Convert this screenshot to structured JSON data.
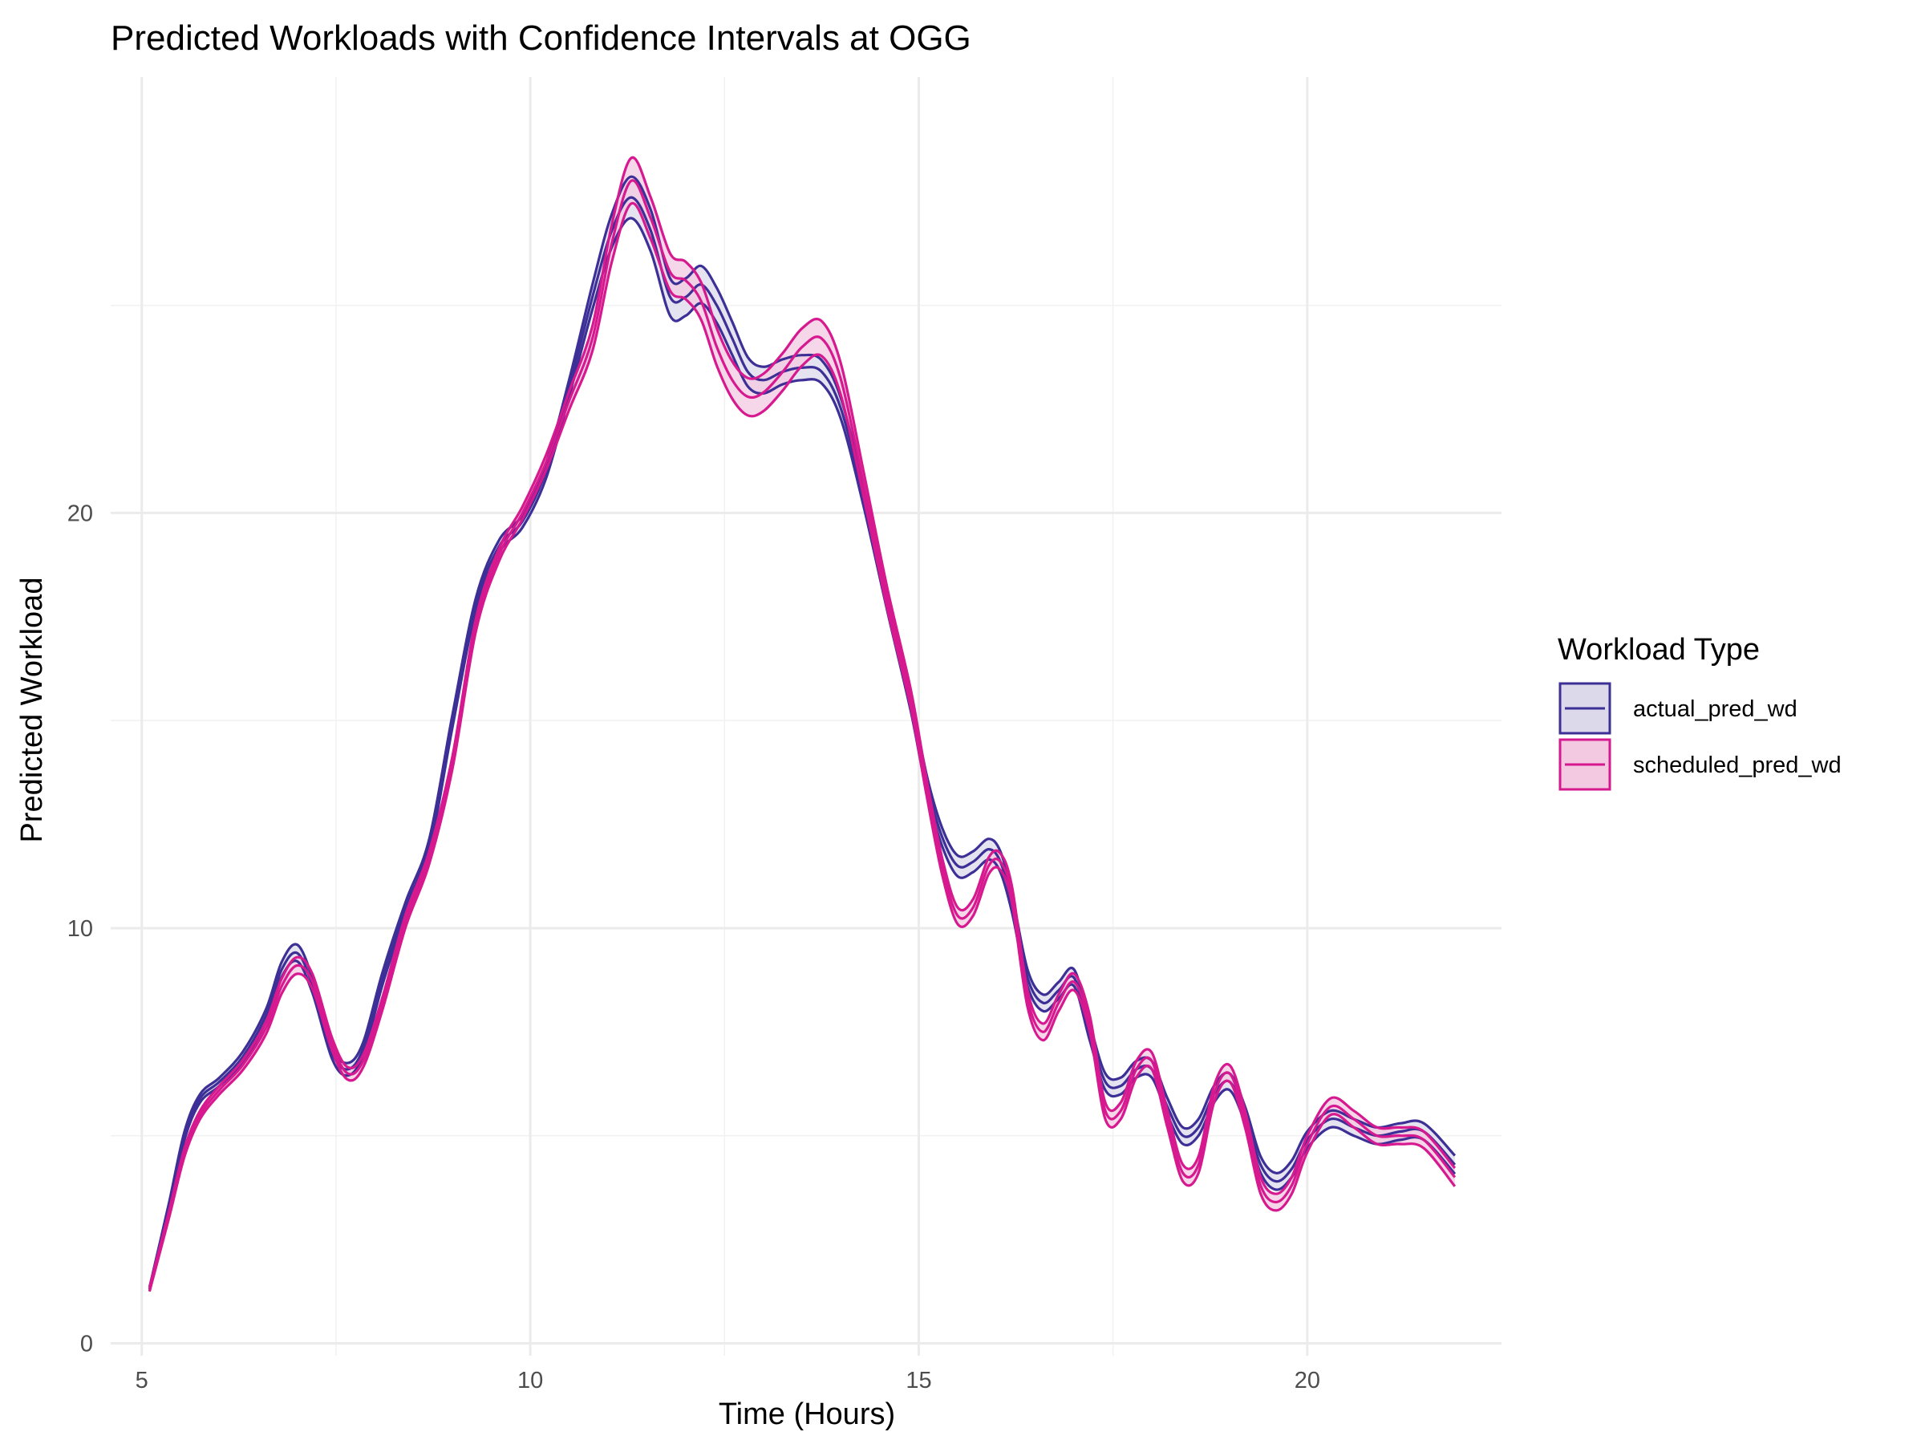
{
  "chart_data": {
    "type": "line",
    "title": "Predicted Workloads with Confidence Intervals at OGG",
    "xlabel": "Time (Hours)",
    "ylabel": "Predicted Workload",
    "xlim": [
      4.6,
      22.5
    ],
    "ylim": [
      -0.3,
      30.5
    ],
    "x_ticks": [
      5,
      10,
      15,
      20
    ],
    "y_ticks": [
      0,
      10,
      20
    ],
    "x_minor_ticks": [
      7.5,
      12.5,
      17.5
    ],
    "y_minor_ticks": [
      5,
      15,
      25
    ],
    "x_tick_labels": [
      "5",
      "10",
      "15",
      "20"
    ],
    "y_tick_labels": [
      "0",
      "10",
      "20"
    ],
    "grid": true,
    "legend": {
      "title": "Workload Type",
      "position": "right"
    },
    "series": [
      {
        "name": "actual_pred_wd",
        "color": "#3c2f96",
        "fill": "#dcdaea",
        "x": [
          5.1,
          5.35,
          5.55,
          5.75,
          6.0,
          6.3,
          6.6,
          6.8,
          7.0,
          7.2,
          7.45,
          7.65,
          7.85,
          8.1,
          8.4,
          8.7,
          9.0,
          9.3,
          9.6,
          9.9,
          10.2,
          10.5,
          10.8,
          11.05,
          11.3,
          11.55,
          11.8,
          12.0,
          12.2,
          12.4,
          12.6,
          12.8,
          13.0,
          13.25,
          13.5,
          13.75,
          14.0,
          14.3,
          14.6,
          14.9,
          15.1,
          15.3,
          15.5,
          15.7,
          15.9,
          16.05,
          16.2,
          16.4,
          16.6,
          16.8,
          17.0,
          17.2,
          17.4,
          17.6,
          17.8,
          18.0,
          18.2,
          18.4,
          18.6,
          18.8,
          19.0,
          19.2,
          19.4,
          19.6,
          19.8,
          20.0,
          20.3,
          20.6,
          20.9,
          21.2,
          21.5,
          21.9
        ],
        "values": [
          1.3,
          3.3,
          5.0,
          5.9,
          6.3,
          6.9,
          7.9,
          9.0,
          9.4,
          8.6,
          7.0,
          6.6,
          7.1,
          8.8,
          10.5,
          12.0,
          15.0,
          17.8,
          19.2,
          19.8,
          21.0,
          23.0,
          25.2,
          26.8,
          27.6,
          26.8,
          25.2,
          25.2,
          25.5,
          25.0,
          24.2,
          23.4,
          23.2,
          23.4,
          23.5,
          23.4,
          22.5,
          20.3,
          17.8,
          15.4,
          13.5,
          12.2,
          11.5,
          11.6,
          11.9,
          11.6,
          10.6,
          8.8,
          8.2,
          8.5,
          8.8,
          7.5,
          6.3,
          6.2,
          6.6,
          6.6,
          5.7,
          5.0,
          5.2,
          6.0,
          6.3,
          5.5,
          4.3,
          3.9,
          4.2,
          4.9,
          5.4,
          5.2,
          5.0,
          5.1,
          5.1,
          4.3
        ],
        "ci_halfwidth": [
          0.05,
          0.08,
          0.1,
          0.1,
          0.1,
          0.12,
          0.15,
          0.18,
          0.2,
          0.18,
          0.15,
          0.15,
          0.15,
          0.15,
          0.15,
          0.15,
          0.15,
          0.15,
          0.15,
          0.15,
          0.18,
          0.2,
          0.3,
          0.4,
          0.5,
          0.5,
          0.45,
          0.45,
          0.45,
          0.42,
          0.4,
          0.35,
          0.32,
          0.3,
          0.3,
          0.28,
          0.25,
          0.22,
          0.2,
          0.2,
          0.2,
          0.22,
          0.25,
          0.25,
          0.25,
          0.25,
          0.22,
          0.2,
          0.2,
          0.2,
          0.2,
          0.2,
          0.2,
          0.2,
          0.2,
          0.2,
          0.2,
          0.2,
          0.2,
          0.2,
          0.2,
          0.2,
          0.2,
          0.2,
          0.2,
          0.2,
          0.2,
          0.2,
          0.2,
          0.2,
          0.2,
          0.22
        ]
      },
      {
        "name": "scheduled_pred_wd",
        "color": "#d6198f",
        "fill": "#f3c9e2",
        "x": [
          5.1,
          5.35,
          5.55,
          5.75,
          6.0,
          6.3,
          6.6,
          6.8,
          7.0,
          7.2,
          7.45,
          7.65,
          7.85,
          8.1,
          8.4,
          8.7,
          9.0,
          9.3,
          9.6,
          9.9,
          10.2,
          10.5,
          10.8,
          11.05,
          11.3,
          11.55,
          11.8,
          12.0,
          12.2,
          12.4,
          12.6,
          12.8,
          13.0,
          13.25,
          13.5,
          13.75,
          14.0,
          14.3,
          14.6,
          14.9,
          15.1,
          15.3,
          15.5,
          15.7,
          15.9,
          16.05,
          16.2,
          16.4,
          16.6,
          16.8,
          17.0,
          17.2,
          17.4,
          17.6,
          17.8,
          18.0,
          18.2,
          18.4,
          18.6,
          18.8,
          19.0,
          19.2,
          19.4,
          19.6,
          19.8,
          20.0,
          20.3,
          20.6,
          20.9,
          21.2,
          21.5,
          21.9
        ],
        "values": [
          1.3,
          3.1,
          4.6,
          5.5,
          6.1,
          6.7,
          7.6,
          8.6,
          9.1,
          8.7,
          7.2,
          6.5,
          6.8,
          8.2,
          10.2,
          11.7,
          14.0,
          17.3,
          19.0,
          20.0,
          21.2,
          22.7,
          24.2,
          26.5,
          28.0,
          27.1,
          25.8,
          25.6,
          25.1,
          24.0,
          23.2,
          22.8,
          22.9,
          23.4,
          24.0,
          24.2,
          23.2,
          20.6,
          17.9,
          15.5,
          13.4,
          11.5,
          10.3,
          10.5,
          11.5,
          11.6,
          10.8,
          8.3,
          7.5,
          8.2,
          8.7,
          7.7,
          5.6,
          5.6,
          6.6,
          6.8,
          5.4,
          4.1,
          4.3,
          6.0,
          6.5,
          5.4,
          3.8,
          3.4,
          3.8,
          4.8,
          5.7,
          5.4,
          5.0,
          5.0,
          4.9,
          4.0
        ],
        "ci_halfwidth": [
          0.05,
          0.08,
          0.1,
          0.1,
          0.1,
          0.12,
          0.15,
          0.18,
          0.2,
          0.18,
          0.15,
          0.15,
          0.15,
          0.15,
          0.15,
          0.15,
          0.15,
          0.15,
          0.15,
          0.15,
          0.18,
          0.22,
          0.3,
          0.45,
          0.55,
          0.5,
          0.45,
          0.45,
          0.45,
          0.45,
          0.45,
          0.45,
          0.45,
          0.45,
          0.45,
          0.42,
          0.38,
          0.3,
          0.25,
          0.22,
          0.2,
          0.2,
          0.2,
          0.2,
          0.2,
          0.2,
          0.2,
          0.2,
          0.2,
          0.2,
          0.2,
          0.2,
          0.2,
          0.2,
          0.2,
          0.2,
          0.2,
          0.2,
          0.2,
          0.2,
          0.2,
          0.2,
          0.2,
          0.2,
          0.2,
          0.2,
          0.2,
          0.2,
          0.2,
          0.2,
          0.2,
          0.22
        ]
      }
    ]
  }
}
